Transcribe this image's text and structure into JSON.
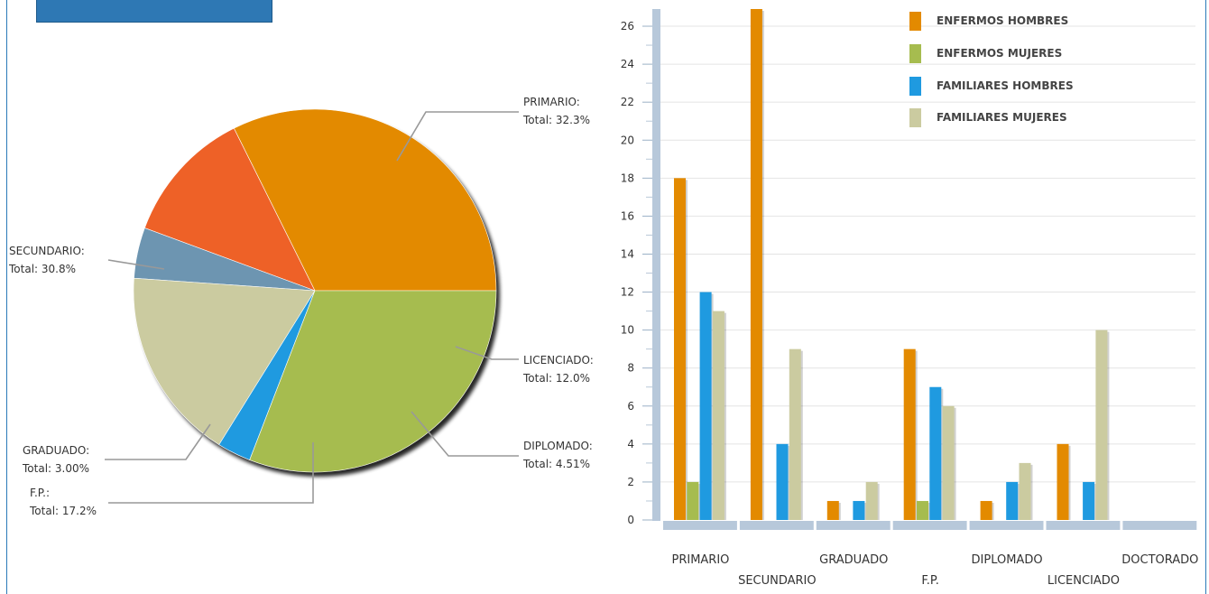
{
  "chart_data": [
    {
      "type": "pie",
      "slices": [
        {
          "name": "PRIMARIO",
          "value": 32.3,
          "line1": "PRIMARIO:",
          "line2": "Total:  32.3%",
          "color": "#e38a00"
        },
        {
          "name": "LICENCIADO",
          "value": 12.0,
          "line1": "LICENCIADO:",
          "line2": "Total:  12.0%",
          "color": "#ee6127"
        },
        {
          "name": "DIPLOMADO",
          "value": 4.51,
          "line1": "DIPLOMADO:",
          "line2": "Total:  4.51%",
          "color": "#6d95b1"
        },
        {
          "name": "F.P.",
          "value": 17.2,
          "line1": "F.P.:",
          "line2": "Total:  17.2%",
          "color": "#cbcba0"
        },
        {
          "name": "GRADUADO",
          "value": 3.0,
          "line1": "GRADUADO:",
          "line2": "Total:  3.00%",
          "color": "#1f9ae0"
        },
        {
          "name": "SECUNDARIO",
          "value": 30.8,
          "line1": "SECUNDARIO:",
          "line2": "Total:  30.8%",
          "color": "#a6bc4f"
        }
      ]
    },
    {
      "type": "bar",
      "categories": [
        "PRIMARIO",
        "SECUNDARIO",
        "GRADUADO",
        "F.P.",
        "DIPLOMADO",
        "LICENCIADO",
        "DOCTORADO"
      ],
      "series": [
        {
          "name": "ENFERMOS HOMBRES",
          "color": "#e38a00",
          "values": [
            18,
            28,
            1,
            9,
            1,
            4,
            0
          ]
        },
        {
          "name": "ENFERMOS MUJERES",
          "color": "#a6bc4f",
          "values": [
            2,
            0,
            0,
            1,
            0,
            0,
            0
          ]
        },
        {
          "name": "FAMILIARES HOMBRES",
          "color": "#1f9ae0",
          "values": [
            12,
            4,
            1,
            7,
            2,
            2,
            0
          ]
        },
        {
          "name": "FAMILIARES MUJERES",
          "color": "#cbcba0",
          "values": [
            11,
            9,
            2,
            6,
            3,
            10,
            0
          ]
        }
      ],
      "y_ticks": [
        "0",
        "2",
        "4",
        "6",
        "8",
        "10",
        "12",
        "14",
        "16",
        "18",
        "20",
        "22",
        "24",
        "26"
      ],
      "ylim": [
        0,
        26.8
      ],
      "grid": true,
      "legend_position": "top-right"
    }
  ]
}
